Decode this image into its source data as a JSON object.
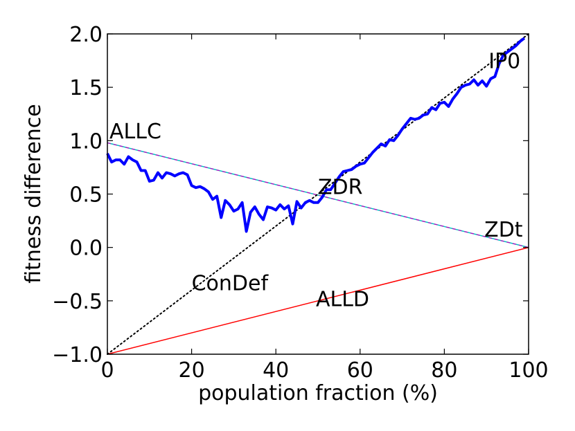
{
  "chart_data": {
    "type": "line",
    "title": "",
    "xlabel": "population fraction (%)",
    "ylabel": "fitness difference",
    "xlim": [
      0,
      100
    ],
    "ylim": [
      -1.0,
      2.0
    ],
    "xticks": [
      0,
      20,
      40,
      60,
      80,
      100
    ],
    "yticks": [
      -1.0,
      -0.5,
      0.0,
      0.5,
      1.0,
      1.5,
      2.0
    ],
    "xtick_labels": [
      "0",
      "20",
      "40",
      "60",
      "80",
      "100"
    ],
    "ytick_labels": [
      "−1.0",
      "−0.5",
      "0.0",
      "0.5",
      "1.0",
      "1.5",
      "2.0"
    ],
    "grid": false,
    "series": [
      {
        "color": "#ff0000",
        "style": "solid",
        "x": [
          0,
          100
        ],
        "y": [
          -1.0,
          0.0
        ]
      },
      {
        "color": "#00bfbf",
        "style": "solid",
        "x": [
          0,
          100
        ],
        "y": [
          0.98,
          0.0
        ]
      },
      {
        "color": "#bf00bf",
        "style": "dashed",
        "x": [
          0,
          100
        ],
        "y": [
          0.98,
          0.0
        ]
      },
      {
        "color": "#000000",
        "style": "dotted",
        "x": [
          0,
          100
        ],
        "y": [
          -1.0,
          2.0
        ]
      },
      {
        "color": "#0000ff",
        "style": "solid-thick",
        "x": [
          0,
          1,
          2,
          3,
          4,
          5,
          6,
          7,
          8,
          9,
          10,
          11,
          12,
          13,
          14,
          15,
          16,
          17,
          18,
          19,
          20,
          21,
          22,
          23,
          24,
          25,
          26,
          27,
          28,
          29,
          30,
          31,
          32,
          33,
          34,
          35,
          36,
          37,
          38,
          39,
          40,
          41,
          42,
          43,
          44,
          45,
          46,
          47,
          48,
          49,
          50,
          51,
          52,
          53,
          54,
          55,
          56,
          57,
          58,
          59,
          60,
          61,
          62,
          63,
          64,
          65,
          66,
          67,
          68,
          69,
          70,
          71,
          72,
          73,
          74,
          75,
          76,
          77,
          78,
          79,
          80,
          81,
          82,
          83,
          84,
          85,
          86,
          87,
          88,
          89,
          90,
          91,
          92,
          93,
          94,
          95,
          96,
          97,
          98,
          99
        ],
        "y": [
          0.88,
          0.8,
          0.82,
          0.82,
          0.78,
          0.85,
          0.82,
          0.8,
          0.72,
          0.72,
          0.62,
          0.63,
          0.7,
          0.65,
          0.7,
          0.69,
          0.67,
          0.69,
          0.7,
          0.68,
          0.58,
          0.56,
          0.57,
          0.55,
          0.52,
          0.45,
          0.48,
          0.28,
          0.44,
          0.4,
          0.34,
          0.36,
          0.42,
          0.15,
          0.33,
          0.38,
          0.31,
          0.26,
          0.38,
          0.37,
          0.35,
          0.4,
          0.36,
          0.39,
          0.22,
          0.43,
          0.37,
          0.42,
          0.44,
          0.42,
          0.42,
          0.47,
          0.54,
          0.54,
          0.6,
          0.66,
          0.71,
          0.72,
          0.73,
          0.76,
          0.78,
          0.79,
          0.84,
          0.89,
          0.93,
          0.97,
          0.95,
          1.01,
          1.0,
          1.05,
          1.11,
          1.16,
          1.21,
          1.2,
          1.21,
          1.24,
          1.25,
          1.31,
          1.29,
          1.35,
          1.36,
          1.32,
          1.39,
          1.44,
          1.5,
          1.52,
          1.53,
          1.57,
          1.52,
          1.56,
          1.51,
          1.58,
          1.6,
          1.72,
          1.8,
          1.83,
          1.86,
          1.89,
          1.93,
          1.96
        ]
      }
    ],
    "annotations": [
      {
        "text": "ALLC",
        "x": 0.5,
        "y": 1.02
      },
      {
        "text": "IP0",
        "x": 90.5,
        "y": 1.68
      },
      {
        "text": "ZDR",
        "x": 50.0,
        "y": 0.5
      },
      {
        "text": "ZDt",
        "x": 89.5,
        "y": 0.1
      },
      {
        "text": "ConDef",
        "x": 20.0,
        "y": -0.4
      },
      {
        "text": "ALLD",
        "x": 49.5,
        "y": -0.55
      }
    ]
  }
}
